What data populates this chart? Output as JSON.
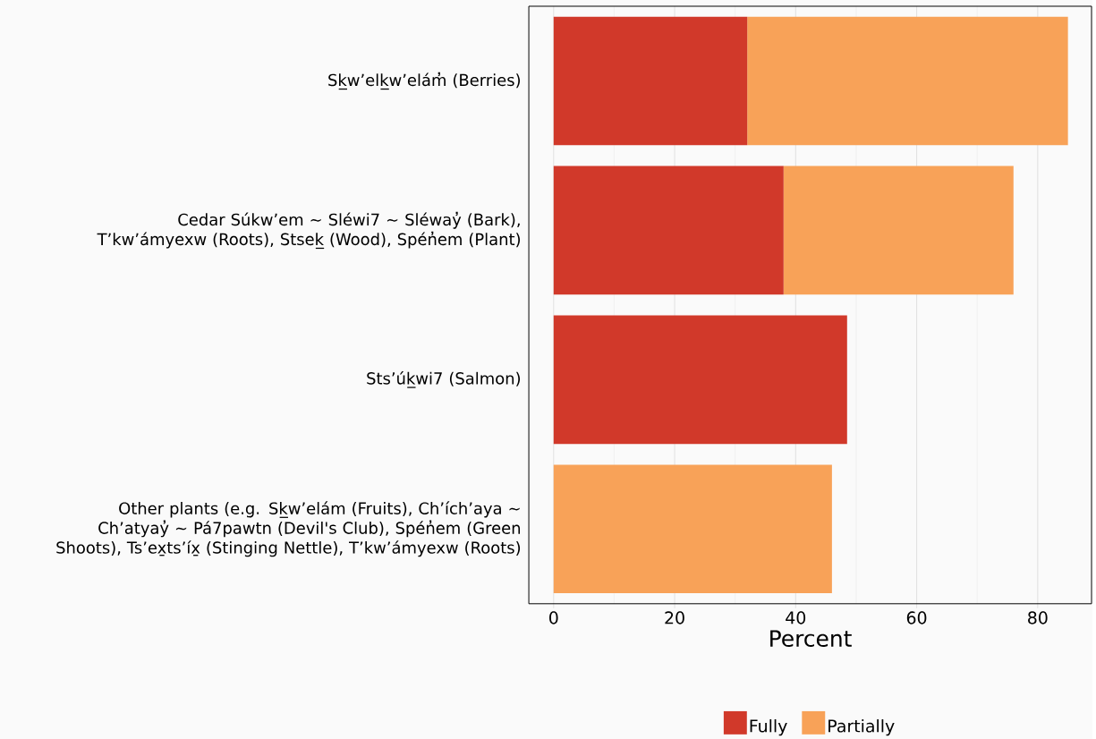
{
  "chart_data": {
    "type": "bar",
    "orientation": "horizontal",
    "stacked": true,
    "categories": [
      "Sk̲w’elk̲w’elám̓ (Berries)",
      "Cedar Súkw’em ~ Sléwi7 ~ Sléway̓ (Bark), T’kw’ámyexw (Roots), Stsek̲ (Wood), Spén̓em (Plant)",
      "Sts’úk̲wi7 (Salmon)",
      "Other plants (e.g. Sk̲w’elám (Fruits), Ch’ích’aya ~ Ch’atyay̓ ~ Pá7pawtn (Devil's Club), Spén̓em (Green Shoots), Ts’ex̱ts’íx̱ (Stinging Nettle), T’kw’ámyexw (Roots)"
    ],
    "series": [
      {
        "name": "Fully",
        "color": "#d1392a",
        "values": [
          32,
          38,
          48.5,
          0
        ]
      },
      {
        "name": "Partially",
        "color": "#f8a258",
        "values": [
          53,
          38,
          0,
          46
        ]
      }
    ],
    "xlabel": "Percent",
    "xlim": [
      -4.1,
      88.9
    ],
    "xticks": [
      0,
      {
        "value": 10,
        "label": null
      },
      20,
      {
        "value": 30,
        "label": null
      },
      40,
      {
        "value": 50,
        "label": null
      },
      60,
      {
        "value": 70,
        "label": null
      },
      80
    ],
    "grid": "x",
    "legend": "bottom"
  }
}
